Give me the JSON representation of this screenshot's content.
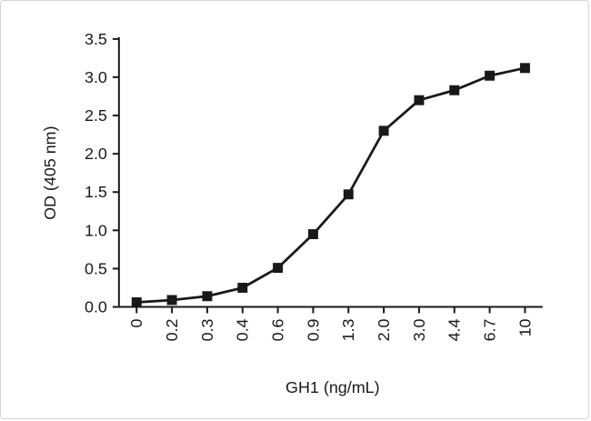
{
  "chart_data": {
    "type": "line",
    "categories": [
      "0",
      "0.2",
      "0.3",
      "0.4",
      "0.6",
      "0.9",
      "1.3",
      "2.0",
      "3.0",
      "4.4",
      "6.7",
      "10"
    ],
    "values": [
      0.06,
      0.09,
      0.14,
      0.25,
      0.51,
      0.95,
      1.47,
      2.3,
      2.7,
      2.83,
      3.02,
      3.12
    ],
    "title": "",
    "xlabel": "GH1 (ng/mL)",
    "ylabel": "OD (405 nm)",
    "ylim": [
      0,
      3.5
    ],
    "ytick_step": 0.5,
    "ytick_labels": [
      "0.0",
      "0.5",
      "1.0",
      "1.5",
      "2.0",
      "2.5",
      "3.0",
      "3.5"
    ],
    "marker": "square",
    "grid": false,
    "legend_position": "none",
    "line_color": "#191919",
    "marker_color": "#191919",
    "axis_color": "#191919",
    "background_color": "#ffffff"
  }
}
